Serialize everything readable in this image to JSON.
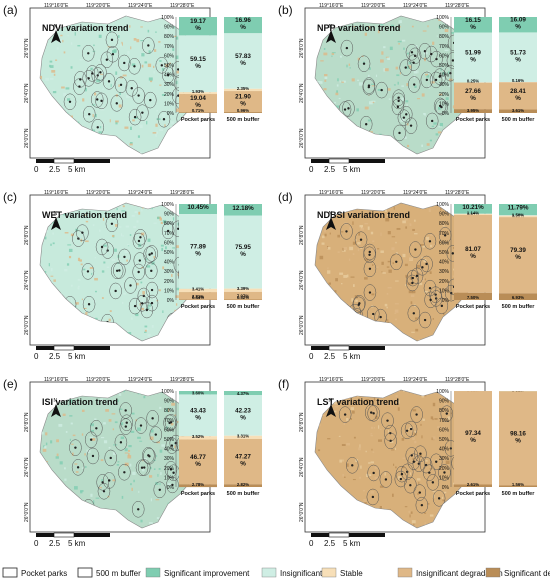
{
  "colors": {
    "significant_improvement": "#7fcdb1",
    "insignificant": "#cfeee4",
    "stable": "#f7dfb8",
    "insignificant_degradation": "#dfb887",
    "significant_degradation": "#b98d57",
    "water": "#ffffff"
  },
  "coords": {
    "top_lon": [
      "119°16'0\"E",
      "119°20'0\"E",
      "119°24'0\"E",
      "119°28'0\"E"
    ],
    "left_lat": [
      "26°8'0\"N",
      "26°4'0\"N",
      "26°0'0\"N"
    ]
  },
  "scalebar": {
    "labels": [
      "0",
      "2.5",
      "5 km"
    ]
  },
  "bar_axis": {
    "ticks": [
      "100%",
      "90%",
      "80%",
      "70%",
      "60%",
      "50%",
      "40%",
      "30%",
      "20%",
      "10%",
      "0%"
    ]
  },
  "legend": [
    {
      "label": "Pocket parks",
      "key": "pocket_parks"
    },
    {
      "label": "500 m buffer",
      "key": "buffer"
    },
    {
      "label": "Significant improvement",
      "key": "significant_improvement"
    },
    {
      "label": "Insignificant",
      "key": "insignificant"
    },
    {
      "label": "Stable",
      "key": "stable"
    },
    {
      "label": "Insignificant degradation",
      "key": "insignificant_degradation"
    },
    {
      "label": "Significant degradation",
      "key": "significant_degradation"
    }
  ],
  "panels": [
    {
      "letter": "(a)",
      "title": "NDVI variation trend",
      "theme": "teal",
      "chart_data": {
        "type": "bar",
        "categories": [
          "Pocket parks",
          "500 m buffer"
        ],
        "series": [
          {
            "key": "significant_improvement",
            "values": [
              19.17,
              16.96
            ]
          },
          {
            "key": "insignificant",
            "values": [
              59.15,
              57.83
            ]
          },
          {
            "key": "stable",
            "values": [
              1.93,
              2.35
            ]
          },
          {
            "key": "insignificant_degradation",
            "values": [
              19.04,
              21.9
            ]
          },
          {
            "key": "significant_degradation",
            "values": [
              0.71,
              0.96
            ]
          }
        ],
        "value_labels": [
          [
            "19.17\n%",
            "59.15\n%",
            "1.93%",
            "19.04\n%",
            "0.71%"
          ],
          [
            "16.96\n%",
            "57.83\n%",
            "2.35%",
            "21.90\n%",
            "0.96%"
          ]
        ],
        "ylim": [
          0,
          100
        ]
      }
    },
    {
      "letter": "(b)",
      "title": "NPP variation trend",
      "theme": "mix",
      "chart_data": {
        "type": "bar",
        "categories": [
          "Pocket parks",
          "500 m buffer"
        ],
        "series": [
          {
            "key": "significant_improvement",
            "values": [
              16.15,
              16.09
            ]
          },
          {
            "key": "insignificant",
            "values": [
              51.99,
              51.73
            ]
          },
          {
            "key": "stable",
            "values": [
              0.25,
              0.16
            ]
          },
          {
            "key": "insignificant_degradation",
            "values": [
              27.66,
              28.41
            ]
          },
          {
            "key": "significant_degradation",
            "values": [
              3.95,
              3.61
            ]
          }
        ],
        "value_labels": [
          [
            "16.15\n%",
            "51.99\n%",
            "0.25%",
            "27.66\n%",
            "3.95%"
          ],
          [
            "16.09\n%",
            "51.73\n%",
            "0.16%",
            "28.41\n%",
            "3.61%"
          ]
        ],
        "ylim": [
          0,
          100
        ]
      }
    },
    {
      "letter": "(c)",
      "title": "WET variation trend",
      "theme": "teal",
      "chart_data": {
        "type": "bar",
        "categories": [
          "Pocket parks",
          "500 m buffer"
        ],
        "series": [
          {
            "key": "significant_improvement",
            "values": [
              10.45,
              12.18
            ]
          },
          {
            "key": "insignificant",
            "values": [
              77.89,
              75.95
            ]
          },
          {
            "key": "stable",
            "values": [
              3.41,
              3.39
            ]
          },
          {
            "key": "insignificant_degradation",
            "values": [
              7.81,
              7.97
            ]
          },
          {
            "key": "significant_degradation",
            "values": [
              0.44,
              0.52
            ]
          }
        ],
        "value_labels": [
          [
            "10.45%",
            "77.89\n%",
            "3.41%",
            "7.81%",
            "0.44%"
          ],
          [
            "12.18%",
            "75.95\n%",
            "3.39%",
            "7.97%",
            "0.52%"
          ]
        ],
        "ylim": [
          0,
          100
        ]
      }
    },
    {
      "letter": "(d)",
      "title": "NDBSI variation trend",
      "theme": "orange",
      "chart_data": {
        "type": "bar",
        "categories": [
          "Pocket parks",
          "500 m buffer"
        ],
        "series": [
          {
            "key": "significant_improvement",
            "values": [
              10.21,
              11.79
            ]
          },
          {
            "key": "insignificant",
            "values": [
              0.08,
              0.39
            ]
          },
          {
            "key": "stable",
            "values": [
              1.14,
              1.5
            ]
          },
          {
            "key": "insignificant_degradation",
            "values": [
              81.07,
              79.39
            ]
          },
          {
            "key": "significant_degradation",
            "values": [
              7.5,
              6.93
            ]
          }
        ],
        "value_labels": [
          [
            "10.21%",
            "0.08%",
            "1.14%",
            "81.07\n%",
            "7.50%"
          ],
          [
            "11.79%",
            "0.39%",
            "1.50%",
            "79.39\n%",
            "6.93%"
          ]
        ],
        "ylim": [
          0,
          100
        ]
      }
    },
    {
      "letter": "(e)",
      "title": "ISI variation trend",
      "theme": "mix",
      "chart_data": {
        "type": "bar",
        "categories": [
          "Pocket parks",
          "500 m buffer"
        ],
        "series": [
          {
            "key": "significant_improvement",
            "values": [
              3.6,
              4.37
            ]
          },
          {
            "key": "insignificant",
            "values": [
              43.43,
              42.23
            ]
          },
          {
            "key": "stable",
            "values": [
              3.52,
              3.31
            ]
          },
          {
            "key": "insignificant_degradation",
            "values": [
              46.77,
              47.27
            ]
          },
          {
            "key": "significant_degradation",
            "values": [
              2.78,
              2.82
            ]
          }
        ],
        "value_labels": [
          [
            "3.60%",
            "43.43\n%",
            "3.52%",
            "46.77\n%",
            "2.78%"
          ],
          [
            "4.37%",
            "42.23\n%",
            "3.31%",
            "47.27\n%",
            "2.82%"
          ]
        ],
        "ylim": [
          0,
          100
        ]
      }
    },
    {
      "letter": "(f)",
      "title": "LST variation trend",
      "theme": "orange",
      "chart_data": {
        "type": "bar",
        "categories": [
          "Pocket parks",
          "500 m buffer"
        ],
        "series": [
          {
            "key": "significant_improvement",
            "values": [
              0.0,
              0.0
            ]
          },
          {
            "key": "insignificant",
            "values": [
              0.05,
              0.28
            ]
          },
          {
            "key": "stable",
            "values": [
              0.0,
              0.0
            ]
          },
          {
            "key": "insignificant_degradation",
            "values": [
              97.34,
              98.16
            ]
          },
          {
            "key": "significant_degradation",
            "values": [
              2.61,
              1.56
            ]
          }
        ],
        "value_labels": [
          [
            "0.00%",
            "0.05%",
            "0.00%",
            "97.34\n%",
            "2.61%"
          ],
          [
            "0.00%",
            "0.28%",
            "0.00%",
            "98.16\n%",
            "1.56%"
          ]
        ],
        "ylim": [
          0,
          100
        ]
      }
    }
  ]
}
